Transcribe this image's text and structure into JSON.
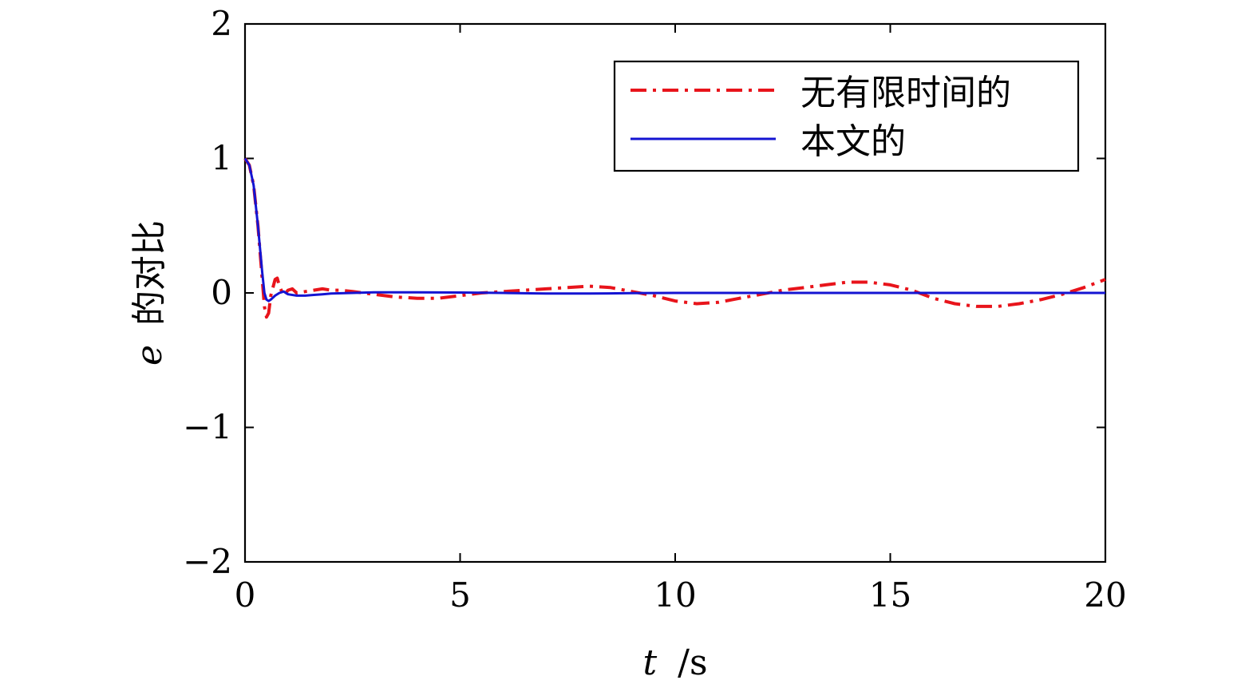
{
  "chart_data": {
    "type": "line",
    "x_tick_labels": [
      "0",
      "5",
      "10",
      "15",
      "20"
    ],
    "y_tick_labels": [
      "2",
      "1",
      "0",
      "−1",
      "−2"
    ],
    "x_ticks": [
      0,
      5,
      10,
      15,
      20
    ],
    "y_ticks": [
      2,
      1,
      0,
      -1,
      -2
    ],
    "xlim": [
      0,
      20
    ],
    "ylim": [
      -2,
      2
    ],
    "xlabel_italic": "t",
    "xlabel_unit": "/s",
    "ylabel_italic": "e",
    "ylabel_text": "的对比",
    "grid": false,
    "legend_position": "top-right",
    "series": [
      {
        "name": "无有限时间的",
        "color": "#e8141b",
        "dash": "dash-dot",
        "x": [
          0,
          0.1,
          0.2,
          0.3,
          0.4,
          0.45,
          0.5,
          0.55,
          0.6,
          0.7,
          0.75,
          0.8,
          0.9,
          1.0,
          1.1,
          1.2,
          1.4,
          1.6,
          1.8,
          2.0,
          2.2,
          2.5,
          3.0,
          3.5,
          4.0,
          4.5,
          5.0,
          5.5,
          6.0,
          6.5,
          7.0,
          7.5,
          8.0,
          8.5,
          9.0,
          9.5,
          10.0,
          10.5,
          11.0,
          11.5,
          12.0,
          12.5,
          13.0,
          13.5,
          14.0,
          14.5,
          15.0,
          15.5,
          16.0,
          16.5,
          17.0,
          17.5,
          18.0,
          18.5,
          19.0,
          19.5,
          20.0
        ],
        "y": [
          1.0,
          0.95,
          0.8,
          0.5,
          0.1,
          -0.1,
          -0.18,
          -0.15,
          -0.02,
          0.1,
          0.11,
          0.05,
          -0.02,
          0.02,
          0.03,
          0.0,
          0.01,
          0.02,
          0.03,
          0.02,
          0.02,
          0.01,
          -0.01,
          -0.03,
          -0.04,
          -0.04,
          -0.02,
          0.0,
          0.01,
          0.02,
          0.03,
          0.04,
          0.05,
          0.04,
          0.01,
          -0.02,
          -0.06,
          -0.08,
          -0.07,
          -0.04,
          -0.01,
          0.02,
          0.04,
          0.06,
          0.08,
          0.08,
          0.06,
          0.02,
          -0.04,
          -0.08,
          -0.1,
          -0.1,
          -0.08,
          -0.05,
          -0.01,
          0.04,
          0.1
        ]
      },
      {
        "name": "本文的",
        "color": "#1414d2",
        "dash": "solid",
        "x": [
          0,
          0.1,
          0.2,
          0.3,
          0.4,
          0.45,
          0.5,
          0.55,
          0.6,
          0.7,
          0.8,
          0.9,
          1.0,
          1.2,
          1.4,
          1.6,
          1.8,
          2.0,
          2.5,
          3.0,
          4.0,
          5.0,
          6.0,
          7.0,
          8.0,
          9.0,
          10.0,
          12.0,
          14.0,
          16.0,
          18.0,
          20.0
        ],
        "y": [
          1.0,
          0.95,
          0.8,
          0.5,
          0.15,
          0.0,
          -0.05,
          -0.06,
          -0.05,
          -0.02,
          0.0,
          0.01,
          -0.01,
          -0.02,
          -0.02,
          -0.015,
          -0.01,
          -0.005,
          0.0,
          0.005,
          0.005,
          0.003,
          0.0,
          -0.005,
          -0.005,
          -0.002,
          0.0,
          0.0,
          0.0,
          0.0,
          0.0,
          0.0
        ]
      }
    ]
  }
}
